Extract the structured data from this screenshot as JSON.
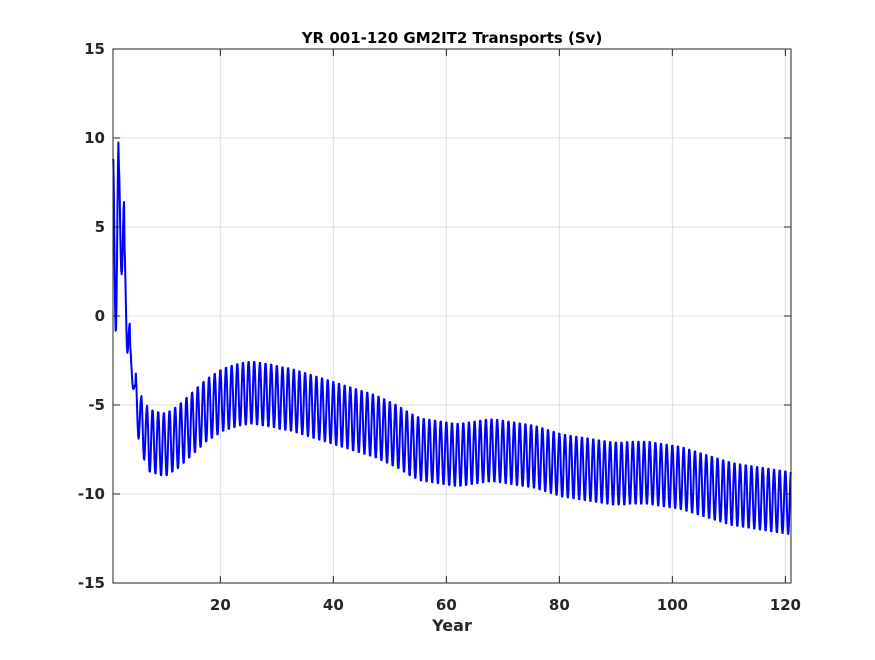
{
  "chart_data": {
    "type": "line",
    "title": "YR 001-120 GM2IT2 Transports (Sv)",
    "xlabel": "Year",
    "ylabel": "",
    "xlim": [
      1,
      121
    ],
    "ylim": [
      -15,
      15
    ],
    "xticks": [
      20,
      40,
      60,
      80,
      100,
      120
    ],
    "xtick_labels": [
      "20",
      "40",
      "60",
      "80",
      "100",
      "120"
    ],
    "yticks": [
      -15,
      -10,
      -5,
      0,
      5,
      10,
      15
    ],
    "ytick_labels": [
      "-15",
      "-10",
      "-5",
      "0",
      "5",
      "10",
      "15"
    ],
    "grid": true,
    "legend": "none",
    "series": [
      {
        "color": "#0000ff",
        "line_width": 2,
        "sampling": "monthly (12 points per year, x = year + (month-0.5)/12)",
        "annual_mean": [
          4.0,
          6.0,
          -0.5,
          -3.5,
          -5.5,
          -6.5,
          -7.0,
          -7.1,
          -7.2,
          -7.2,
          -7.0,
          -6.8,
          -6.5,
          -6.2,
          -5.9,
          -5.6,
          -5.3,
          -5.1,
          -4.9,
          -4.7,
          -4.6,
          -4.5,
          -4.4,
          -4.35,
          -4.3,
          -4.35,
          -4.4,
          -4.45,
          -4.5,
          -4.6,
          -4.65,
          -4.7,
          -4.8,
          -4.9,
          -5.0,
          -5.1,
          -5.2,
          -5.3,
          -5.4,
          -5.5,
          -5.6,
          -5.7,
          -5.8,
          -5.9,
          -6.0,
          -6.1,
          -6.2,
          -6.35,
          -6.5,
          -6.65,
          -6.8,
          -7.0,
          -7.2,
          -7.35,
          -7.5,
          -7.55,
          -7.6,
          -7.65,
          -7.7,
          -7.75,
          -7.8,
          -7.8,
          -7.75,
          -7.7,
          -7.65,
          -7.6,
          -7.55,
          -7.55,
          -7.6,
          -7.65,
          -7.7,
          -7.75,
          -7.8,
          -7.85,
          -7.9,
          -8.0,
          -8.1,
          -8.2,
          -8.3,
          -8.4,
          -8.45,
          -8.5,
          -8.55,
          -8.6,
          -8.65,
          -8.7,
          -8.75,
          -8.8,
          -8.85,
          -8.85,
          -8.85,
          -8.8,
          -8.8,
          -8.8,
          -8.8,
          -8.85,
          -8.9,
          -8.95,
          -9.0,
          -9.05,
          -9.1,
          -9.2,
          -9.3,
          -9.4,
          -9.5,
          -9.6,
          -9.7,
          -9.8,
          -9.9,
          -10.0,
          -10.05,
          -10.1,
          -10.15,
          -10.2,
          -10.25,
          -10.3,
          -10.35,
          -10.4,
          -10.45,
          -10.5
        ],
        "seasonal_half_amplitude": [
          5.0,
          3.5,
          1.5,
          0.5,
          1.4,
          1.6,
          1.8,
          1.8,
          1.8,
          1.8,
          1.8,
          1.8,
          1.8,
          1.8,
          1.8,
          1.8,
          1.8,
          1.8,
          1.8,
          1.8,
          1.8,
          1.8,
          1.8,
          1.8,
          1.8,
          1.8,
          1.8,
          1.8,
          1.8,
          1.8,
          1.8,
          1.8,
          1.8,
          1.8,
          1.8,
          1.8,
          1.8,
          1.8,
          1.8,
          1.8,
          1.8,
          1.8,
          1.8,
          1.8,
          1.8,
          1.8,
          1.8,
          1.8,
          1.8,
          1.8,
          1.8,
          1.8,
          1.8,
          1.8,
          1.8,
          1.8,
          1.8,
          1.8,
          1.8,
          1.8,
          1.8,
          1.8,
          1.8,
          1.8,
          1.8,
          1.8,
          1.8,
          1.8,
          1.8,
          1.8,
          1.8,
          1.8,
          1.8,
          1.8,
          1.8,
          1.8,
          1.8,
          1.8,
          1.8,
          1.8,
          1.8,
          1.8,
          1.8,
          1.8,
          1.8,
          1.8,
          1.8,
          1.8,
          1.8,
          1.8,
          1.8,
          1.8,
          1.8,
          1.8,
          1.8,
          1.8,
          1.8,
          1.8,
          1.8,
          1.8,
          1.8,
          1.8,
          1.8,
          1.8,
          1.8,
          1.8,
          1.8,
          1.8,
          1.8,
          1.8,
          1.8,
          1.8,
          1.8,
          1.8,
          1.8,
          1.8,
          1.8,
          1.8,
          1.8,
          1.8
        ]
      }
    ]
  }
}
